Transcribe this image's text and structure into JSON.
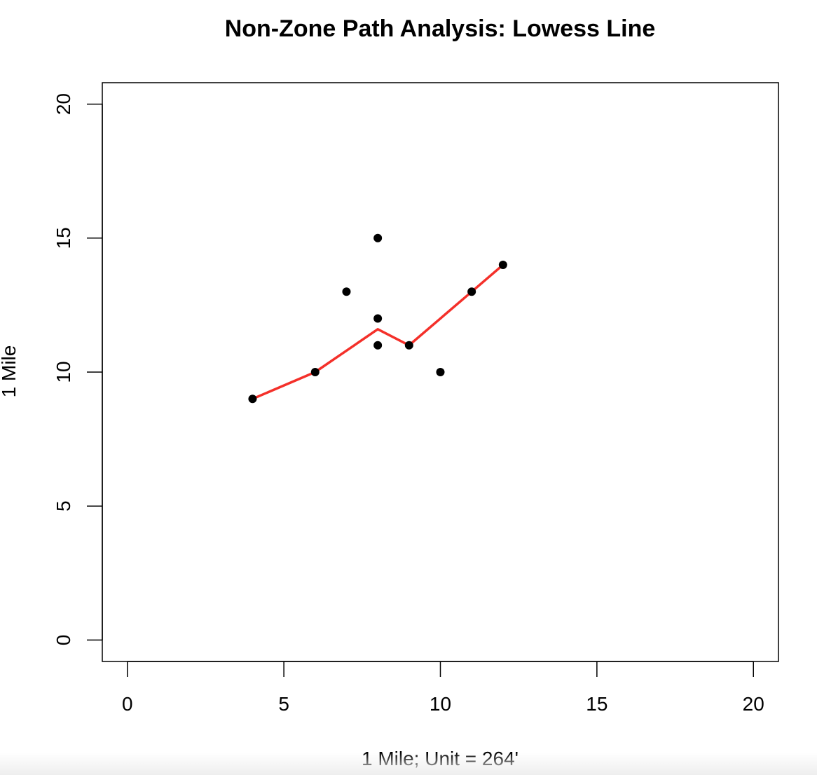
{
  "chart_data": {
    "type": "scatter",
    "title": "Non-Zone Path Analysis: Lowess Line",
    "xlabel": "1 Mile; Unit = 264'",
    "ylabel": "1 Mile",
    "xlim": [
      -0.8,
      20.8
    ],
    "ylim": [
      -0.8,
      20.8
    ],
    "x_ticks": [
      0,
      5,
      10,
      15,
      20
    ],
    "y_ticks": [
      0,
      5,
      10,
      15,
      20
    ],
    "grid": false,
    "legend": "none",
    "series": [
      {
        "kind": "points",
        "color": "#000000",
        "points": [
          {
            "x": 4,
            "y": 9
          },
          {
            "x": 6,
            "y": 10
          },
          {
            "x": 7,
            "y": 13
          },
          {
            "x": 8,
            "y": 15
          },
          {
            "x": 8,
            "y": 12
          },
          {
            "x": 8,
            "y": 11
          },
          {
            "x": 9,
            "y": 11
          },
          {
            "x": 10,
            "y": 10
          },
          {
            "x": 11,
            "y": 13
          },
          {
            "x": 12,
            "y": 14
          }
        ]
      },
      {
        "kind": "lowess-line",
        "color": "#f4302a",
        "points": [
          {
            "x": 4,
            "y": 9
          },
          {
            "x": 6,
            "y": 10
          },
          {
            "x": 7,
            "y": 10.8
          },
          {
            "x": 8,
            "y": 11.6
          },
          {
            "x": 9,
            "y": 11
          },
          {
            "x": 10,
            "y": 12
          },
          {
            "x": 11,
            "y": 13
          },
          {
            "x": 12,
            "y": 14
          }
        ]
      }
    ]
  }
}
